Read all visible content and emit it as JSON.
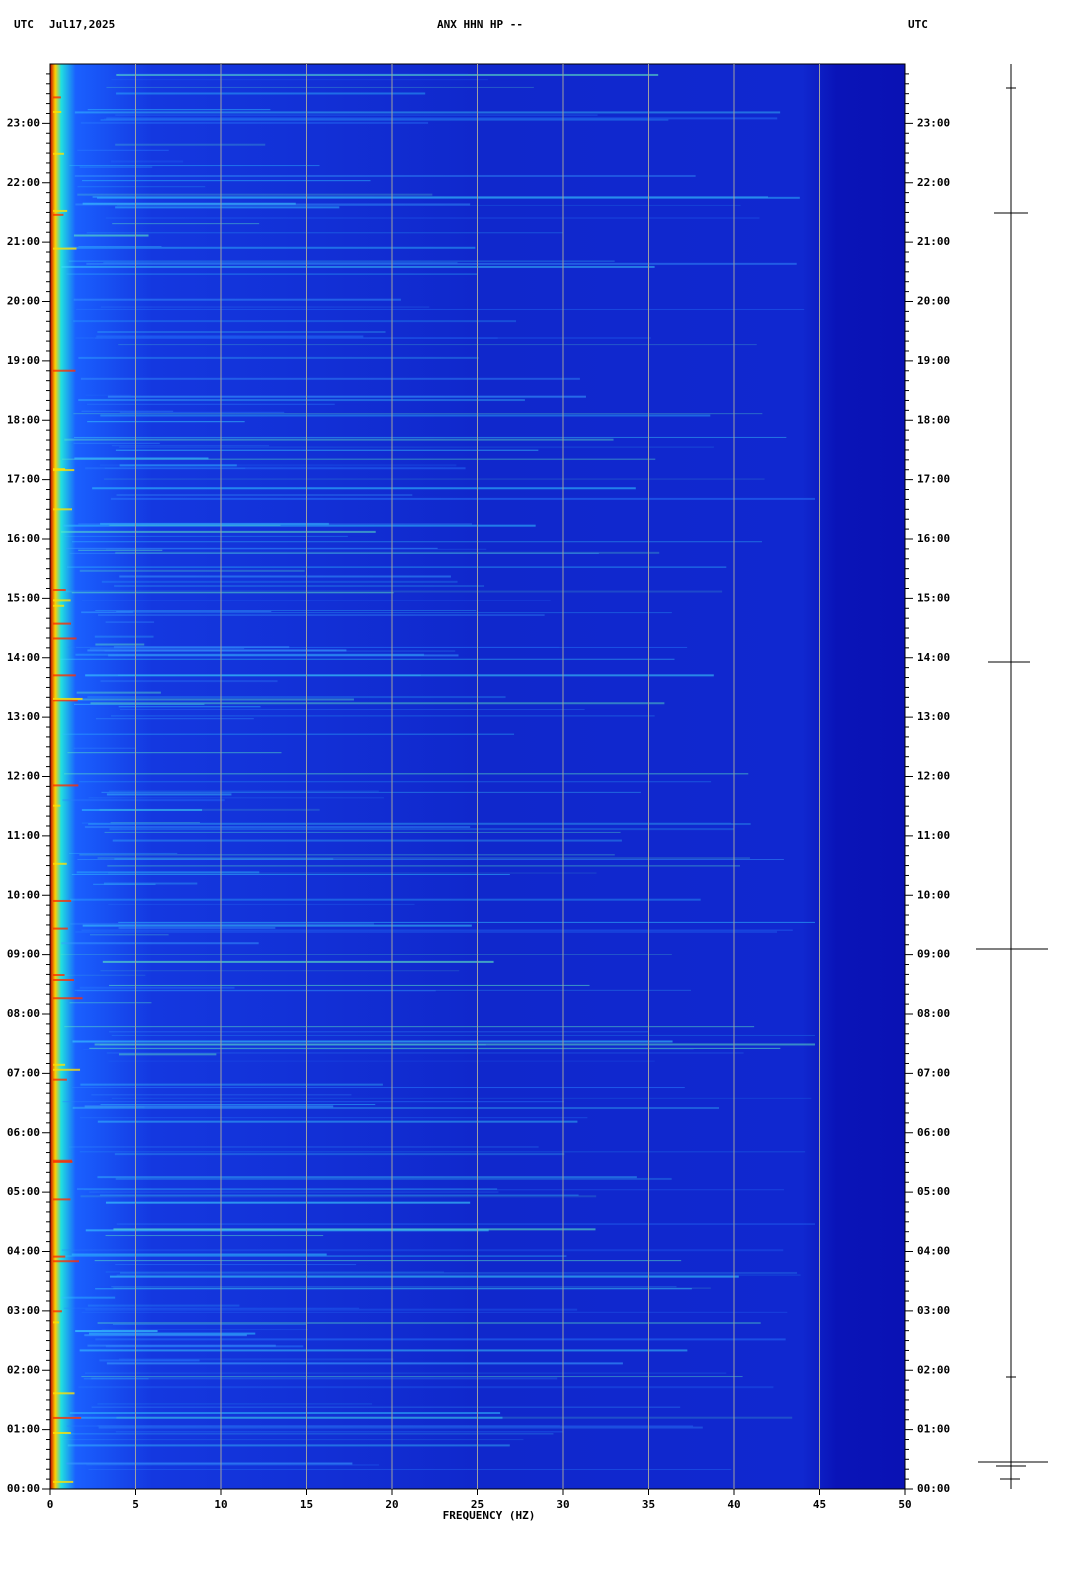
{
  "chart_data": {
    "type": "spectrogram",
    "title": "ANX HHN HP --",
    "time_zone_left": "UTC",
    "date": "Jul17,2025",
    "time_zone_right": "UTC",
    "x_label": "FREQUENCY (HZ)",
    "xlim": [
      0,
      50
    ],
    "xticks": [
      0,
      5,
      10,
      15,
      20,
      25,
      30,
      35,
      40,
      45,
      50
    ],
    "ylim": [
      0,
      24
    ],
    "yticks": [
      {
        "value": 0,
        "label": "00:00"
      },
      {
        "value": 1,
        "label": "01:00"
      },
      {
        "value": 2,
        "label": "02:00"
      },
      {
        "value": 3,
        "label": "03:00"
      },
      {
        "value": 4,
        "label": "04:00"
      },
      {
        "value": 5,
        "label": "05:00"
      },
      {
        "value": 6,
        "label": "06:00"
      },
      {
        "value": 7,
        "label": "07:00"
      },
      {
        "value": 8,
        "label": "08:00"
      },
      {
        "value": 9,
        "label": "09:00"
      },
      {
        "value": 10,
        "label": "10:00"
      },
      {
        "value": 11,
        "label": "11:00"
      },
      {
        "value": 12,
        "label": "12:00"
      },
      {
        "value": 13,
        "label": "13:00"
      },
      {
        "value": 14,
        "label": "14:00"
      },
      {
        "value": 15,
        "label": "15:00"
      },
      {
        "value": 16,
        "label": "16:00"
      },
      {
        "value": 17,
        "label": "17:00"
      },
      {
        "value": 18,
        "label": "18:00"
      },
      {
        "value": 19,
        "label": "19:00"
      },
      {
        "value": 20,
        "label": "20:00"
      },
      {
        "value": 21,
        "label": "21:00"
      },
      {
        "value": 22,
        "label": "22:00"
      },
      {
        "value": 23,
        "label": "23:00"
      }
    ],
    "grid": true
  }
}
